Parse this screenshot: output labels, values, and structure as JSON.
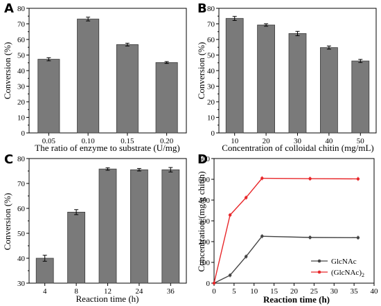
{
  "colors": {
    "bar": "#7a7a7a",
    "line_glcnac": "#444444",
    "line_dimer": "#e8272a"
  },
  "chart_data": [
    {
      "panel": "A",
      "type": "bar",
      "categories": [
        "0.05",
        "0.10",
        "0.15",
        "0.20"
      ],
      "values": [
        47.3,
        73.1,
        56.7,
        45.2
      ],
      "errors": [
        1.0,
        1.2,
        0.9,
        0.6
      ],
      "xlabel": "The ratio of enzyme to substrate (U/mg)",
      "ylabel": "Conversion (%)",
      "ylim": [
        0,
        80
      ],
      "yticks": [
        "0",
        "10",
        "20",
        "30",
        "40",
        "50",
        "60",
        "70",
        "80"
      ]
    },
    {
      "panel": "B",
      "type": "bar",
      "categories": [
        "10",
        "20",
        "30",
        "40",
        "50"
      ],
      "values": [
        73.5,
        69.3,
        63.8,
        54.8,
        46.2
      ],
      "errors": [
        1.3,
        0.8,
        1.4,
        1.0,
        1.0
      ],
      "xlabel": "Concentration of colloidal chitin (mg/mL)",
      "ylabel": "Conversion (%)",
      "ylim": [
        0,
        80
      ],
      "yticks": [
        "0",
        "10",
        "20",
        "30",
        "40",
        "50",
        "60",
        "70",
        "80"
      ]
    },
    {
      "panel": "C",
      "type": "bar",
      "categories": [
        "4",
        "8",
        "12",
        "24",
        "36"
      ],
      "values": [
        40.0,
        58.5,
        75.8,
        75.5,
        75.5
      ],
      "errors": [
        1.2,
        1.0,
        0.5,
        0.5,
        0.9
      ],
      "xlabel": "Reaction time (h)",
      "ylabel": "Conversion (%)",
      "ylim": [
        30,
        80
      ],
      "yticks": [
        "30",
        "40",
        "50",
        "60",
        "70",
        "80"
      ]
    },
    {
      "panel": "D",
      "type": "line",
      "series": [
        {
          "name": "GlcNAc",
          "x": [
            0,
            4,
            8,
            12,
            24,
            36
          ],
          "values": [
            0,
            38,
            128,
            226,
            220,
            219
          ]
        },
        {
          "name": "(GlcNAc)",
          "name_subscript": "2",
          "x": [
            0,
            4,
            8,
            12,
            24,
            36
          ],
          "values": [
            0,
            328,
            412,
            505,
            503,
            502
          ]
        }
      ],
      "xlabel": "Reaction time (h)",
      "ylabel": "Concentration (mg/g chitin)",
      "xlim": [
        0,
        40
      ],
      "ylim": [
        0,
        600
      ],
      "xticks": [
        "0",
        "5",
        "10",
        "15",
        "20",
        "25",
        "30",
        "35",
        "40"
      ],
      "yticks": [
        "0",
        "100",
        "200",
        "300",
        "400",
        "500",
        "600"
      ]
    }
  ]
}
